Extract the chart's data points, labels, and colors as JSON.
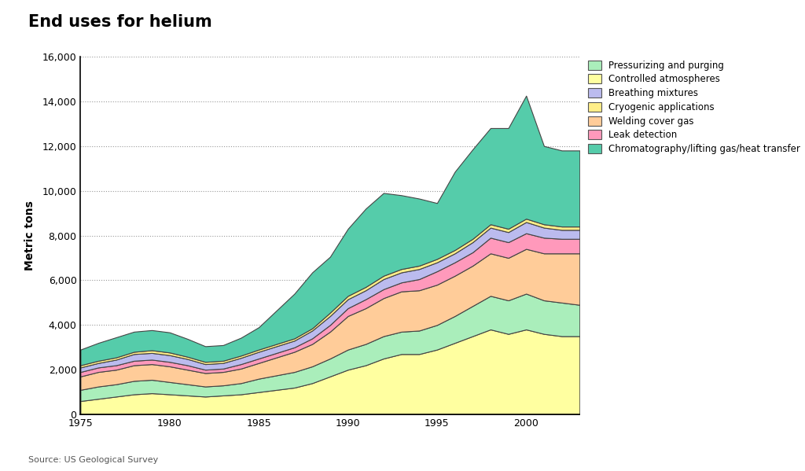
{
  "title": "End uses for helium",
  "source": "Source: US Geological Survey",
  "ylabel": "Metric tons",
  "years": [
    1975,
    1976,
    1977,
    1978,
    1979,
    1980,
    1981,
    1982,
    1983,
    1984,
    1985,
    1986,
    1987,
    1988,
    1989,
    1990,
    1991,
    1992,
    1993,
    1994,
    1995,
    1996,
    1997,
    1998,
    1999,
    2000,
    2001,
    2002,
    2003
  ],
  "series": {
    "Controlled atmospheres": [
      600,
      700,
      800,
      900,
      950,
      900,
      850,
      800,
      850,
      900,
      1000,
      1100,
      1200,
      1400,
      1700,
      2000,
      2200,
      2500,
      2700,
      2700,
      2900,
      3200,
      3500,
      3800,
      3600,
      3800,
      3600,
      3500,
      3500
    ],
    "Pressurizing and purging": [
      500,
      550,
      550,
      600,
      600,
      550,
      500,
      450,
      450,
      500,
      600,
      650,
      700,
      750,
      800,
      900,
      950,
      1000,
      1000,
      1050,
      1100,
      1200,
      1350,
      1500,
      1500,
      1600,
      1500,
      1500,
      1400
    ],
    "Welding cover gas": [
      600,
      650,
      650,
      700,
      700,
      700,
      650,
      600,
      600,
      650,
      700,
      800,
      900,
      1000,
      1200,
      1500,
      1600,
      1700,
      1800,
      1800,
      1800,
      1800,
      1800,
      1900,
      1900,
      2000,
      2100,
      2200,
      2300
    ],
    "Leak detection": [
      200,
      200,
      200,
      200,
      200,
      200,
      200,
      150,
      150,
      200,
      200,
      200,
      200,
      250,
      300,
      350,
      400,
      400,
      400,
      500,
      600,
      600,
      600,
      700,
      700,
      700,
      700,
      650,
      650
    ],
    "Breathing mixtures": [
      200,
      200,
      250,
      300,
      300,
      300,
      280,
      250,
      250,
      280,
      300,
      300,
      300,
      350,
      400,
      400,
      400,
      450,
      450,
      450,
      400,
      400,
      450,
      450,
      450,
      500,
      450,
      400,
      400
    ],
    "Cryogenic applications": [
      100,
      100,
      100,
      100,
      120,
      120,
      100,
      100,
      100,
      100,
      100,
      100,
      100,
      100,
      150,
      150,
      150,
      150,
      150,
      150,
      150,
      150,
      150,
      150,
      150,
      150,
      150,
      150,
      150
    ],
    "Chromatography/lifting gas/heat transfer": [
      700,
      800,
      900,
      900,
      900,
      900,
      800,
      700,
      700,
      800,
      1000,
      1500,
      2000,
      2500,
      2500,
      3000,
      3500,
      3700,
      3300,
      3000,
      2500,
      3500,
      4000,
      4300,
      4500,
      5500,
      3500,
      3400,
      3400
    ]
  },
  "colors": {
    "Controlled atmospheres": "#FFFFA0",
    "Pressurizing and purging": "#AAEEBB",
    "Welding cover gas": "#FFCC99",
    "Leak detection": "#FF99BB",
    "Breathing mixtures": "#BBBBEE",
    "Cryogenic applications": "#FFEE88",
    "Chromatography/lifting gas/heat transfer": "#55CCAA"
  },
  "stack_order": [
    "Controlled atmospheres",
    "Pressurizing and purging",
    "Welding cover gas",
    "Leak detection",
    "Breathing mixtures",
    "Cryogenic applications",
    "Chromatography/lifting gas/heat transfer"
  ],
  "legend_order": [
    "Pressurizing and purging",
    "Controlled atmospheres",
    "Breathing mixtures",
    "Cryogenic applications",
    "Welding cover gas",
    "Leak detection",
    "Chromatography/lifting gas/heat transfer"
  ],
  "ylim": [
    0,
    16000
  ],
  "yticks": [
    0,
    2000,
    4000,
    6000,
    8000,
    10000,
    12000,
    14000,
    16000
  ],
  "xticks": [
    1975,
    1980,
    1985,
    1990,
    1995,
    2000
  ],
  "background_color": "#ffffff"
}
